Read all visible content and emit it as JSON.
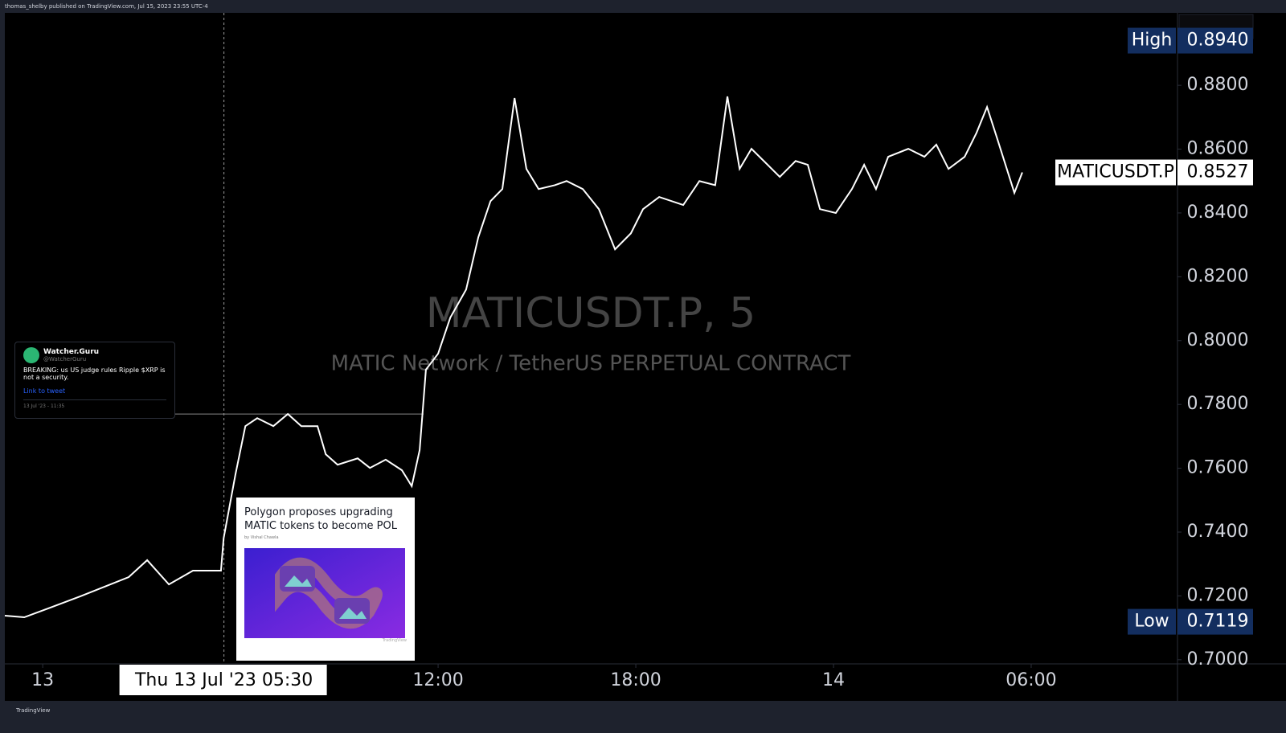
{
  "header": {
    "text": "thomas_shelby published on TradingView.com, Jul 15, 2023 23:55 UTC-4"
  },
  "footer": {
    "text": "TradingView"
  },
  "tweet": {
    "name": "Watcher.Guru",
    "handle": "@WatcherGuru",
    "text": "BREAKING: us US judge rules Ripple $XRP is not a security.",
    "link": "Link to tweet",
    "date": "13 Jul '23 - 11:35"
  },
  "news": {
    "title": "Polygon proposes upgrading MATIC tokens to become POL",
    "byline": "by Vishal Chawla",
    "source": "TradingView"
  },
  "chart_data": {
    "type": "line",
    "title": "MATICUSDT.P, 5",
    "subtitle": "MATIC Network / TetherUS PERPETUAL CONTRACT",
    "x": [
      -1.15,
      -0.56,
      0.17,
      1.15,
      1.88,
      2.61,
      3.17,
      3.83,
      4.56,
      5.41,
      5.49,
      5.85,
      6.15,
      6.51,
      7.0,
      7.44,
      7.85,
      8.34,
      8.59,
      8.95,
      9.56,
      9.93,
      10.41,
      10.9,
      11.2,
      11.44,
      11.63,
      12.0,
      12.37,
      12.85,
      13.22,
      13.59,
      13.95,
      14.32,
      14.68,
      15.05,
      15.54,
      15.9,
      16.39,
      16.88,
      17.37,
      17.85,
      18.22,
      18.71,
      19.44,
      19.93,
      20.41,
      20.78,
      21.15,
      21.51,
      22.0,
      22.37,
      22.85,
      23.22,
      23.59,
      24.07,
      24.56,
      24.93,
      25.29,
      25.66,
      26.27,
      26.76,
      27.12,
      27.49,
      27.98,
      28.34,
      28.66,
      28.95,
      29.49,
      29.73
    ],
    "series": [
      {
        "name": "MATICUSDT.P",
        "color": "#ffffff",
        "values": [
          0.7138,
          0.7133,
          0.7161,
          0.7199,
          0.7229,
          0.7259,
          0.7312,
          0.7236,
          0.7279,
          0.7279,
          0.738,
          0.7581,
          0.7732,
          0.7757,
          0.7732,
          0.777,
          0.7732,
          0.7732,
          0.7644,
          0.7611,
          0.7631,
          0.7601,
          0.7627,
          0.7594,
          0.7544,
          0.7657,
          0.7909,
          0.7959,
          0.8072,
          0.816,
          0.8324,
          0.8437,
          0.8475,
          0.876,
          0.8538,
          0.8475,
          0.8487,
          0.85,
          0.8475,
          0.8412,
          0.8286,
          0.8336,
          0.8412,
          0.845,
          0.8425,
          0.85,
          0.8487,
          0.8765,
          0.8538,
          0.8601,
          0.8551,
          0.8513,
          0.8563,
          0.8551,
          0.8412,
          0.84,
          0.8475,
          0.8551,
          0.8475,
          0.8576,
          0.8601,
          0.8576,
          0.8614,
          0.8538,
          0.8576,
          0.8651,
          0.8732,
          0.8639,
          0.8463,
          0.8527
        ]
      }
    ],
    "xlim": [
      -1.15,
      34.44
    ],
    "ylim": [
      0.6987,
      0.9027
    ],
    "xticks": [
      {
        "value": 0,
        "label": "13"
      },
      {
        "value": 12,
        "label": "12:00"
      },
      {
        "value": 18,
        "label": "18:00"
      },
      {
        "value": 24,
        "label": "14"
      },
      {
        "value": 30,
        "label": "06:00"
      }
    ],
    "yticks": [
      {
        "value": 0.7,
        "label": "0.7000"
      },
      {
        "value": 0.72,
        "label": "0.7200"
      },
      {
        "value": 0.74,
        "label": "0.7400"
      },
      {
        "value": 0.76,
        "label": "0.7600"
      },
      {
        "value": 0.78,
        "label": "0.7800"
      },
      {
        "value": 0.8,
        "label": "0.8000"
      },
      {
        "value": 0.82,
        "label": "0.8200"
      },
      {
        "value": 0.84,
        "label": "0.8400"
      },
      {
        "value": 0.86,
        "label": "0.8600"
      },
      {
        "value": 0.88,
        "label": "0.8800"
      }
    ],
    "markers": [
      {
        "name": "High",
        "value": 0.894,
        "value_label": "0.8940"
      },
      {
        "name": "MATICUSDT.P",
        "value": 0.8527,
        "value_label": "0.8527"
      },
      {
        "name": "Low",
        "value": 0.7119,
        "value_label": "0.7119"
      }
    ],
    "crosshair": {
      "x": {
        "value": 5.5,
        "label": "Thu 13 Jul '23 05:30"
      },
      "y": 0.777
    }
  }
}
